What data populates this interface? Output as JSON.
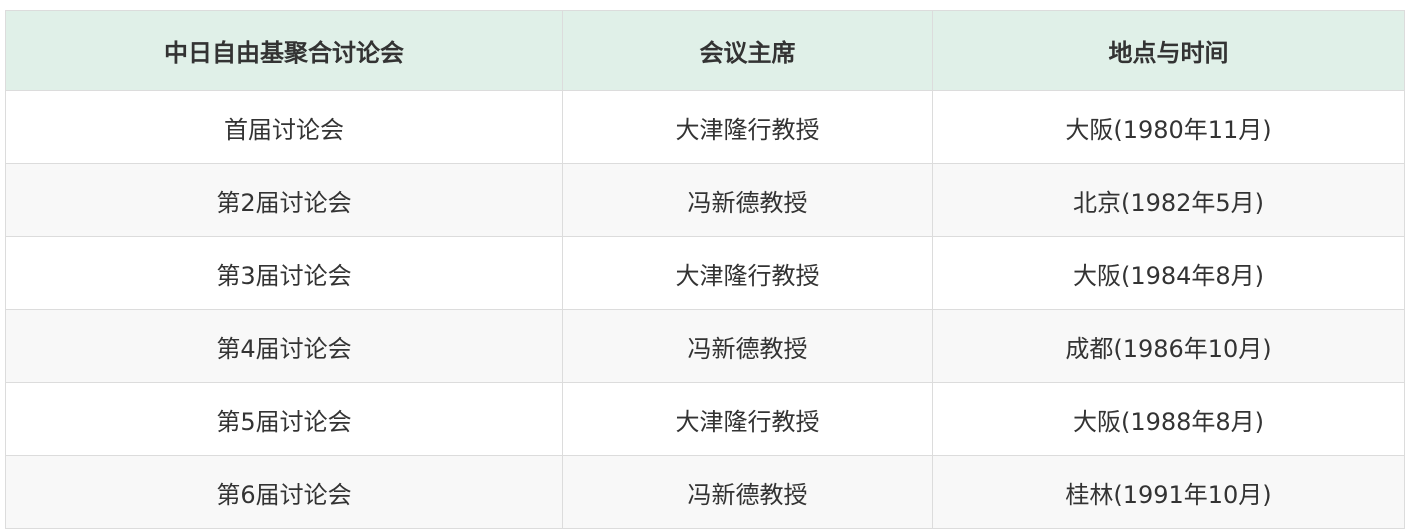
{
  "table": {
    "headers": [
      "中日自由基聚合讨论会",
      "会议主席",
      "地点与时间"
    ],
    "rows": [
      [
        "首届讨论会",
        "大津隆行教授",
        "大阪(1980年11月)"
      ],
      [
        "第2届讨论会",
        "冯新德教授",
        "北京(1982年5月)"
      ],
      [
        "第3届讨论会",
        "大津隆行教授",
        "大阪(1984年8月)"
      ],
      [
        "第4届讨论会",
        "冯新德教授",
        "成都(1986年10月)"
      ],
      [
        "第5届讨论会",
        "大津隆行教授",
        "大阪(1988年8月)"
      ],
      [
        "第6届讨论会",
        "冯新德教授",
        "桂林(1991年10月)"
      ]
    ],
    "header_bg": "#e0f0e8",
    "alt_row_bg": "#f8f8f8"
  }
}
